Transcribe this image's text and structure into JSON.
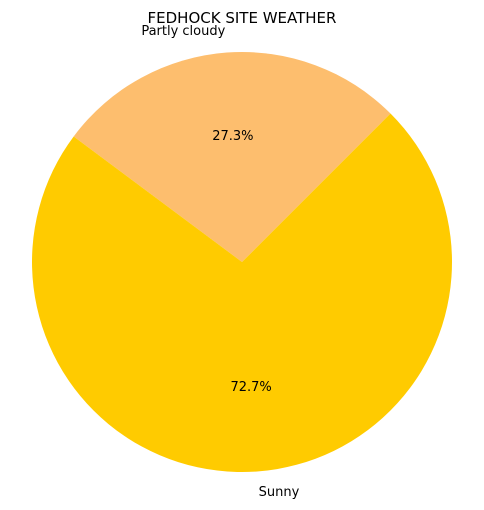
{
  "chart_data": {
    "type": "pie",
    "title": "FEDHOCK SITE WEATHER",
    "slices": [
      {
        "label": "Partly cloudy",
        "value": 27.3,
        "pct_label": "27.3%",
        "color": "#fdbe6e"
      },
      {
        "label": "Sunny",
        "value": 72.7,
        "pct_label": "72.7%",
        "color": "#ffcb00"
      }
    ]
  }
}
